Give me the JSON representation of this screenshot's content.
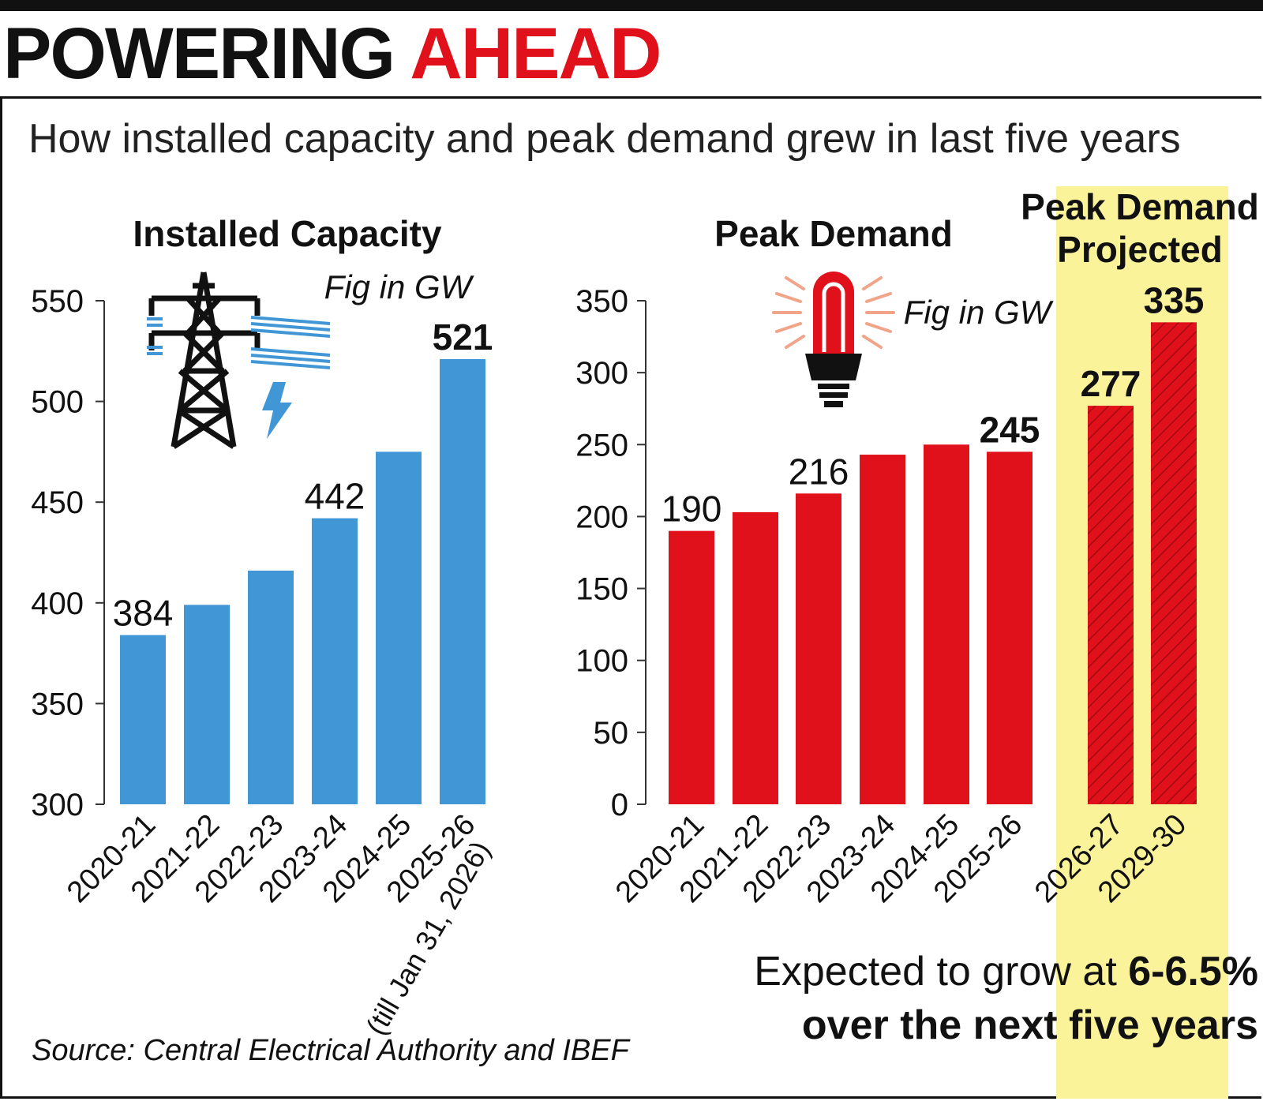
{
  "header": {
    "title_part1": "POWERING",
    "title_part2": "AHEAD",
    "subtitle": "How installed capacity and peak demand grew in last five years"
  },
  "source": "Source: Central Electrical Authority and IBEF",
  "colors": {
    "capacity": "#4196d6",
    "demand": "#e0111b",
    "title_accent": "#e0111b",
    "projected_highlight": "#fbf39a"
  },
  "icons": [
    "transmission-tower-icon",
    "lightning-bolt-icon",
    "light-bulb-icon"
  ],
  "chart_data": [
    {
      "type": "bar",
      "title": "Installed Capacity",
      "unit_note": "Fig in GW",
      "categories": [
        "2020-21",
        "2021-22",
        "2022-23",
        "2023-24",
        "2024-25",
        "2025-26"
      ],
      "category_note": "(till Jan 31, 2026)",
      "values": [
        384,
        399,
        416,
        442,
        475,
        521
      ],
      "data_labels": [
        "384",
        "",
        "",
        "442",
        "",
        "521"
      ],
      "bold_labels": [
        "521"
      ],
      "ylim": [
        300,
        550
      ],
      "yticks": [
        300,
        350,
        400,
        450,
        500,
        550
      ],
      "grid": false,
      "color": "#4196d6"
    },
    {
      "type": "bar",
      "title": "Peak Demand",
      "projected_title": "Peak Demand Projected",
      "unit_note": "Fig in GW",
      "categories": [
        "2020-21",
        "2021-22",
        "2022-23",
        "2023-24",
        "2024-25",
        "2025-26",
        "2026-27",
        "2029-30"
      ],
      "values": [
        190,
        203,
        216,
        243,
        250,
        245,
        277,
        335
      ],
      "projected": [
        false,
        false,
        false,
        false,
        false,
        false,
        true,
        true
      ],
      "data_labels": [
        "190",
        "",
        "216",
        "",
        "",
        "245",
        "277",
        "335"
      ],
      "bold_labels": [
        "245",
        "277",
        "335"
      ],
      "ylim": [
        0,
        350
      ],
      "yticks": [
        0,
        50,
        100,
        150,
        200,
        250,
        300,
        350
      ],
      "grid": false,
      "color": "#e0111b",
      "note_part1": "Expected to grow at ",
      "note_bold": "6-6.5%",
      "note_line2": "over the next five years"
    }
  ]
}
